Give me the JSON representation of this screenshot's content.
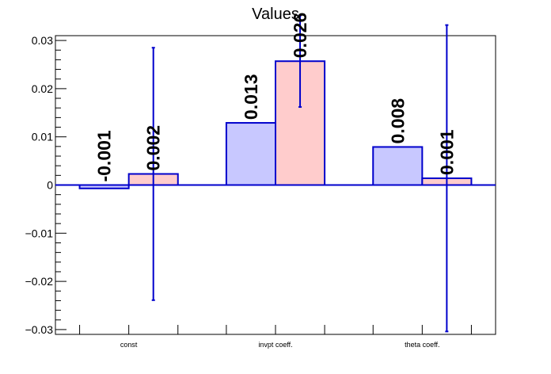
{
  "chart_data": {
    "type": "bar",
    "title": "Values",
    "xlabel": "",
    "ylabel": "",
    "categories": [
      "const",
      "invpt coeff.",
      "theta coeff."
    ],
    "series": [
      {
        "color": "#c8c8ff",
        "values": [
          -0.0007,
          0.0129,
          0.0079
        ],
        "labels": [
          "-0.001",
          "0.013",
          "0.008"
        ],
        "errors": [
          null,
          null,
          null
        ]
      },
      {
        "color": "#ffcccc",
        "values": [
          0.0023,
          0.0257,
          0.0014
        ],
        "labels": [
          "0.002",
          "0.026",
          "0.001"
        ],
        "errors": [
          0.0262,
          0.0095,
          0.0318
        ]
      }
    ],
    "ylim": [
      -0.031,
      0.031
    ],
    "yticks": [
      -0.03,
      -0.02,
      -0.01,
      0,
      0.01,
      0.02,
      0.03
    ],
    "ytick_labels": [
      "−0.03",
      "−0.02",
      "−0.01",
      "0",
      "0.01",
      "0.02",
      "0.03"
    ],
    "grid": false,
    "legend": "none",
    "line_color": "#0000cc"
  }
}
